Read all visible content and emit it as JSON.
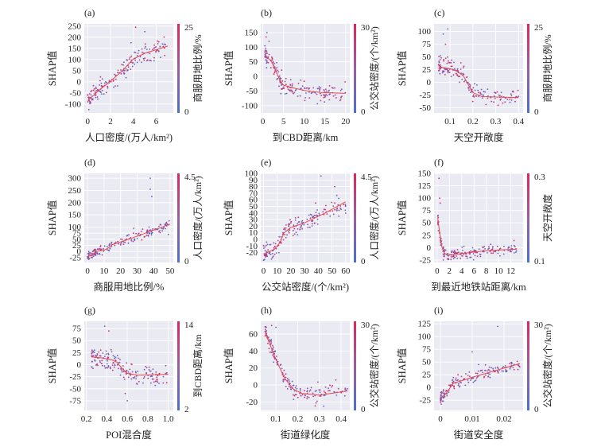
{
  "figure": {
    "y_label": "SHAP值"
  },
  "colors": {
    "low": "#4a6fd0",
    "high": "#e0245e",
    "fit": "#e8474e",
    "grid": "#ffffff",
    "panel_bg": "#eaeaf2"
  },
  "chart_data": [
    {
      "id": "a",
      "panel_label": "(a)",
      "type": "scatter",
      "xlabel": "人口密度/(万人/km²)",
      "ylabel": "SHAP值",
      "xlim": [
        -0.3,
        7.5
      ],
      "ylim": [
        -140,
        260
      ],
      "xticks": [
        "0",
        "2",
        "4",
        "6"
      ],
      "yticks": [
        "-100",
        "-50",
        "0",
        "50",
        "100",
        "150",
        "200",
        "250"
      ],
      "xtick_values": [
        0,
        2,
        4,
        6
      ],
      "ytick_values": [
        -100,
        -50,
        0,
        50,
        100,
        150,
        200,
        250
      ],
      "colorbar": {
        "label": "商服用地比例/%",
        "max_label": "25",
        "min_label": "0"
      },
      "trend_points": [
        [
          0,
          -85
        ],
        [
          1,
          -38
        ],
        [
          2,
          3
        ],
        [
          3,
          48
        ],
        [
          4,
          102
        ],
        [
          5,
          128
        ],
        [
          7,
          160
        ]
      ],
      "scatter_spread": 22,
      "outliers": [
        [
          4.2,
          245
        ],
        [
          5.0,
          225
        ],
        [
          3.8,
          175
        ],
        [
          6.0,
          135
        ],
        [
          0.1,
          -125
        ]
      ]
    },
    {
      "id": "b",
      "panel_label": "(b)",
      "type": "scatter",
      "xlabel": "到CBD距离/km",
      "ylabel": "SHAP值",
      "xlim": [
        -0.5,
        21
      ],
      "ylim": [
        -125,
        180
      ],
      "xticks": [
        "0",
        "5",
        "10",
        "15",
        "20"
      ],
      "yticks": [
        "-100",
        "-50",
        "0",
        "50",
        "100",
        "150"
      ],
      "xtick_values": [
        0,
        5,
        10,
        15,
        20
      ],
      "ytick_values": [
        -100,
        -50,
        0,
        50,
        100,
        150
      ],
      "colorbar": {
        "label": "公交站密度/(个/km²)",
        "max_label": "30",
        "min_label": "0"
      },
      "trend_points": [
        [
          0.5,
          75
        ],
        [
          2,
          52
        ],
        [
          3,
          25
        ],
        [
          4,
          -10
        ],
        [
          5,
          -30
        ],
        [
          7,
          -38
        ],
        [
          10,
          -48
        ],
        [
          14,
          -55
        ],
        [
          20,
          -58
        ]
      ],
      "scatter_spread": 16,
      "outliers": [
        [
          1.0,
          150
        ],
        [
          0.8,
          135
        ],
        [
          1.5,
          120
        ]
      ]
    },
    {
      "id": "c",
      "panel_label": "(c)",
      "type": "scatter",
      "xlabel": "天空开敞度",
      "ylabel": "SHAP值",
      "xlim": [
        0.03,
        0.42
      ],
      "ylim": [
        -60,
        115
      ],
      "xticks": [
        "0.1",
        "0.2",
        "0.3",
        "0.4"
      ],
      "yticks": [
        "-50",
        "-25",
        "0",
        "25",
        "50",
        "75",
        "100"
      ],
      "xtick_values": [
        0.1,
        0.2,
        0.3,
        0.4
      ],
      "ytick_values": [
        -50,
        -25,
        0,
        25,
        50,
        75,
        100
      ],
      "colorbar": {
        "label": "商服用地比例/%",
        "max_label": "25",
        "min_label": "0"
      },
      "trend_points": [
        [
          0.05,
          30
        ],
        [
          0.1,
          27
        ],
        [
          0.13,
          22
        ],
        [
          0.16,
          12
        ],
        [
          0.18,
          -5
        ],
        [
          0.2,
          -20
        ],
        [
          0.24,
          -28
        ],
        [
          0.4,
          -30
        ]
      ],
      "scatter_spread": 9,
      "outliers": [
        [
          0.09,
          105
        ],
        [
          0.07,
          95
        ],
        [
          0.08,
          75
        ]
      ]
    },
    {
      "id": "d",
      "panel_label": "(d)",
      "type": "scatter",
      "xlabel": "商服用地比例/%",
      "ylabel": "SHAP值",
      "xlim": [
        -2,
        52
      ],
      "ylim": [
        -45,
        320
      ],
      "xticks": [
        "0",
        "10",
        "20",
        "30",
        "40",
        "50"
      ],
      "yticks": [
        "-25",
        "0",
        "25",
        "50",
        "75",
        "100",
        "150",
        "200",
        "250",
        "300"
      ],
      "xtick_values": [
        0,
        10,
        20,
        30,
        40,
        50
      ],
      "ytick_values": [
        -25,
        0,
        25,
        50,
        75,
        100,
        150,
        200,
        250,
        300
      ],
      "colorbar": {
        "label": "人口密度/(万人/km²)",
        "max_label": "4.5",
        "min_label": "0"
      },
      "trend_points": [
        [
          0,
          -22
        ],
        [
          3,
          -12
        ],
        [
          5,
          0
        ],
        [
          10,
          5
        ],
        [
          12,
          12
        ],
        [
          15,
          28
        ],
        [
          25,
          50
        ],
        [
          35,
          75
        ],
        [
          50,
          112
        ]
      ],
      "scatter_spread": 9,
      "outliers": [
        [
          38,
          300
        ],
        [
          38,
          255
        ],
        [
          39,
          225
        ],
        [
          41,
          90
        ],
        [
          49,
          70
        ],
        [
          28,
          95
        ]
      ]
    },
    {
      "id": "e",
      "panel_label": "(e)",
      "type": "scatter",
      "xlabel": "公交站密度/(个/km²)",
      "ylabel": "SHAP值",
      "xlim": [
        -2,
        63
      ],
      "ylim": [
        -35,
        100
      ],
      "xticks": [
        "0",
        "10",
        "20",
        "30",
        "40",
        "50",
        "60"
      ],
      "yticks": [
        "-20",
        "-10",
        "0",
        "10",
        "20",
        "30",
        "40",
        "50",
        "60",
        "70",
        "80",
        "90",
        "100"
      ],
      "xtick_values": [
        0,
        10,
        20,
        30,
        40,
        50,
        60
      ],
      "ytick_values": [
        -20,
        -10,
        0,
        10,
        20,
        30,
        40,
        50,
        60,
        70,
        80,
        90,
        100
      ],
      "colorbar": {
        "label": "人口密度/(万人/km²)",
        "max_label": "4.5",
        "min_label": "0"
      },
      "trend_points": [
        [
          0,
          -22
        ],
        [
          8,
          -15
        ],
        [
          12,
          -5
        ],
        [
          15,
          10
        ],
        [
          20,
          18
        ],
        [
          30,
          25
        ],
        [
          45,
          40
        ],
        [
          60,
          57
        ]
      ],
      "scatter_spread": 7,
      "outliers": [
        [
          42,
          96
        ],
        [
          52,
          80
        ],
        [
          38,
          55
        ],
        [
          45,
          45
        ],
        [
          55,
          35
        ]
      ]
    },
    {
      "id": "f",
      "panel_label": "(f)",
      "type": "scatter",
      "xlabel": "到最近地铁站距离/km",
      "ylabel": "SHAP值",
      "xlim": [
        -0.5,
        14
      ],
      "ylim": [
        -30,
        150
      ],
      "xticks": [
        "0",
        "2",
        "4",
        "6",
        "8",
        "10",
        "12"
      ],
      "yticks": [
        "-25",
        "0",
        "25",
        "50",
        "75",
        "100",
        "125",
        "150"
      ],
      "xtick_values": [
        0,
        2,
        4,
        6,
        8,
        10,
        12
      ],
      "ytick_values": [
        -25,
        0,
        25,
        50,
        75,
        100,
        125,
        150
      ],
      "colorbar": {
        "label": "天空开敞度",
        "max_label": "0.3",
        "min_label": "0.1"
      },
      "trend_points": [
        [
          0.1,
          60
        ],
        [
          0.4,
          30
        ],
        [
          0.8,
          0
        ],
        [
          1.2,
          -12
        ],
        [
          2,
          -15
        ],
        [
          4,
          -12
        ],
        [
          8,
          -6
        ],
        [
          13,
          -3
        ]
      ],
      "scatter_spread": 6,
      "outliers": [
        [
          0.3,
          140
        ],
        [
          0.4,
          100
        ],
        [
          0.5,
          90
        ],
        [
          1.0,
          -25
        ]
      ]
    },
    {
      "id": "g",
      "panel_label": "(g)",
      "type": "scatter",
      "xlabel": "POI混合度",
      "ylabel": "SHAP值",
      "xlim": [
        0.18,
        1.05
      ],
      "ylim": [
        -95,
        90
      ],
      "xticks": [
        "0.2",
        "0.4",
        "0.6",
        "0.8",
        "1.0"
      ],
      "yticks": [
        "-75",
        "-50",
        "-25",
        "0",
        "25",
        "50",
        "75"
      ],
      "xtick_values": [
        0.2,
        0.4,
        0.6,
        0.8,
        1.0
      ],
      "ytick_values": [
        -75,
        -50,
        -25,
        0,
        25,
        50,
        75
      ],
      "colorbar": {
        "label": "到CBD距离/km",
        "max_label": "14",
        "min_label": "2"
      },
      "trend_points": [
        [
          0.25,
          16
        ],
        [
          0.35,
          14
        ],
        [
          0.45,
          10
        ],
        [
          0.5,
          5
        ],
        [
          0.55,
          -8
        ],
        [
          0.6,
          -18
        ],
        [
          0.7,
          -22
        ],
        [
          1.0,
          -20
        ]
      ],
      "scatter_spread": 10,
      "outliers": [
        [
          0.38,
          80
        ],
        [
          0.42,
          70
        ],
        [
          0.6,
          -75
        ],
        [
          0.58,
          -60
        ]
      ]
    },
    {
      "id": "h",
      "panel_label": "(h)",
      "type": "scatter",
      "xlabel": "街道绿化度",
      "ylabel": "SHAP值",
      "xlim": [
        0.03,
        0.44
      ],
      "ylim": [
        -30,
        75
      ],
      "xticks": [
        "0.1",
        "0.2",
        "0.3",
        "0.4"
      ],
      "yticks": [
        "-20",
        "0",
        "20",
        "40",
        "60"
      ],
      "xtick_values": [
        0.1,
        0.2,
        0.3,
        0.4
      ],
      "ytick_values": [
        -20,
        0,
        20,
        40,
        60
      ],
      "colorbar": {
        "label": "公交站密度/(个/km²)",
        "max_label": "30",
        "min_label": "0"
      },
      "trend_points": [
        [
          0.05,
          62
        ],
        [
          0.1,
          30
        ],
        [
          0.14,
          8
        ],
        [
          0.18,
          -5
        ],
        [
          0.22,
          -10
        ],
        [
          0.3,
          -12
        ],
        [
          0.43,
          -7
        ]
      ],
      "scatter_spread": 5,
      "outliers": [
        [
          0.08,
          70
        ],
        [
          0.1,
          68
        ],
        [
          0.32,
          -25
        ]
      ]
    },
    {
      "id": "i",
      "panel_label": "(i)",
      "type": "scatter",
      "xlabel": "街道安全度",
      "ylabel": "SHAP值",
      "xlim": [
        -0.002,
        0.026
      ],
      "ylim": [
        -45,
        130
      ],
      "xticks": [
        "0",
        "0.01",
        "0.02"
      ],
      "yticks": [
        "-25",
        "0",
        "25",
        "50",
        "75",
        "100",
        "125"
      ],
      "xtick_values": [
        0,
        0.01,
        0.02
      ],
      "ytick_values": [
        -25,
        0,
        25,
        50,
        75,
        100,
        125
      ],
      "colorbar": {
        "label": "公交站密度/(个/km²)",
        "max_label": "30",
        "min_label": "0"
      },
      "trend_points": [
        [
          0,
          -22
        ],
        [
          0.002,
          -10
        ],
        [
          0.004,
          8
        ],
        [
          0.006,
          12
        ],
        [
          0.01,
          20
        ],
        [
          0.025,
          47
        ]
      ],
      "scatter_spread": 6,
      "outliers": [
        [
          0.018,
          120
        ],
        [
          0.01,
          70
        ],
        [
          0.012,
          45
        ],
        [
          0.022,
          40
        ]
      ]
    }
  ]
}
